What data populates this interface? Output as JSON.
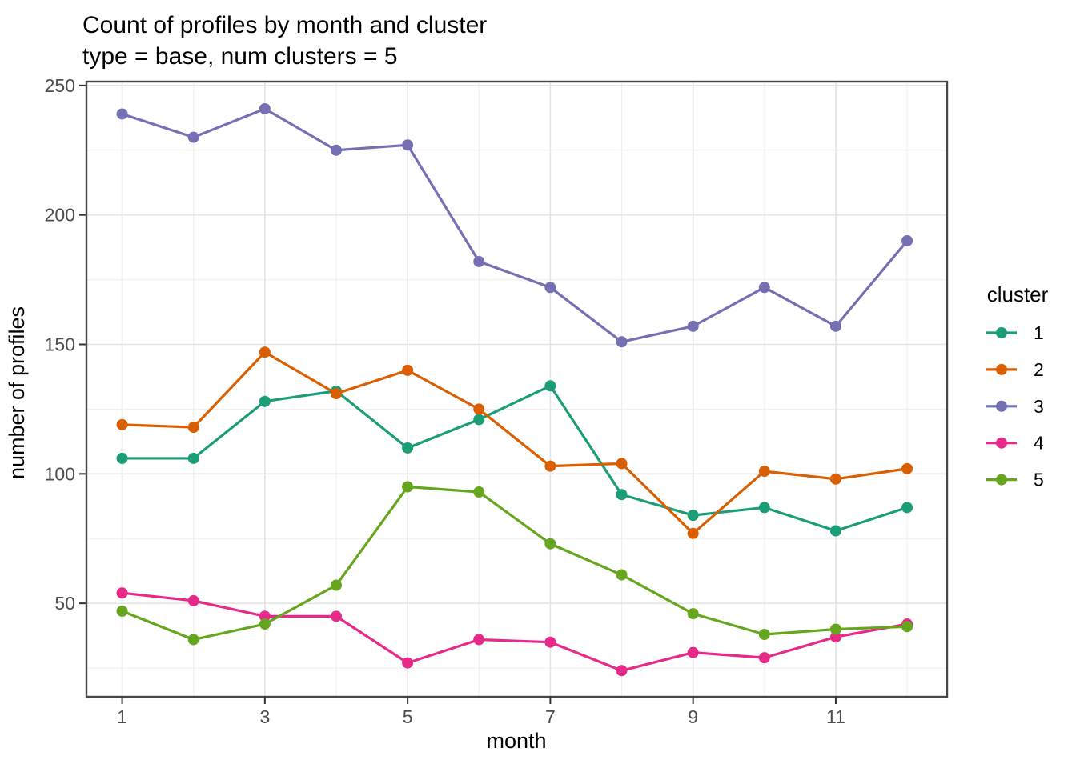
{
  "title": "Count of profiles by month and cluster",
  "subtitle": "type = base, num clusters = 5",
  "legend": {
    "title": "cluster",
    "items": [
      {
        "label": "1",
        "color": "#1B9E77"
      },
      {
        "label": "2",
        "color": "#D95F02"
      },
      {
        "label": "3",
        "color": "#7570B3"
      },
      {
        "label": "4",
        "color": "#E7298A"
      },
      {
        "label": "5",
        "color": "#66A61E"
      }
    ]
  },
  "axes": {
    "x": {
      "label": "month",
      "tick_values": [
        1,
        3,
        5,
        7,
        9,
        11
      ]
    },
    "y": {
      "label": "number of profiles",
      "tick_values": [
        50,
        100,
        150,
        200,
        250
      ]
    }
  },
  "style": {
    "background": "#FFFFFF",
    "panel_background": "#FFFFFF",
    "grid_major": "#E5E5E5",
    "grid_minor": "#F0F0F0",
    "panel_border": "#474747",
    "tick_mark": "#333333",
    "tick_label_color": "#4D4D4D",
    "text_color": "#000000"
  },
  "chart_data": {
    "type": "line",
    "title": "Count of profiles by month and cluster",
    "subtitle": "type = base, num clusters = 5",
    "xlabel": "month",
    "ylabel": "number of profiles",
    "legend_title": "cluster",
    "legend_position": "right",
    "grid": true,
    "x": [
      1,
      2,
      3,
      4,
      5,
      6,
      7,
      8,
      9,
      10,
      11,
      12
    ],
    "x_ticks": [
      1,
      3,
      5,
      7,
      9,
      11
    ],
    "x_minor_ticks": [
      2,
      4,
      6,
      8,
      10,
      12
    ],
    "y_ticks": [
      50,
      100,
      150,
      200,
      250
    ],
    "y_minor_ticks": [
      25,
      75,
      125,
      175,
      225
    ],
    "xlim": [
      0.5,
      12.56
    ],
    "ylim": [
      13.9,
      251.5
    ],
    "series": [
      {
        "name": "1",
        "color": "#1B9E77",
        "values": [
          106,
          106,
          128,
          132,
          110,
          121,
          134,
          92,
          84,
          87,
          78,
          87
        ]
      },
      {
        "name": "2",
        "color": "#D95F02",
        "values": [
          119,
          118,
          147,
          131,
          140,
          125,
          103,
          104,
          77,
          101,
          98,
          102
        ]
      },
      {
        "name": "3",
        "color": "#7570B3",
        "values": [
          239,
          230,
          241,
          225,
          227,
          182,
          172,
          151,
          157,
          172,
          157,
          190
        ]
      },
      {
        "name": "4",
        "color": "#E7298A",
        "values": [
          54,
          51,
          45,
          45,
          27,
          36,
          35,
          24,
          31,
          29,
          37,
          42
        ]
      },
      {
        "name": "5",
        "color": "#66A61E",
        "values": [
          47,
          36,
          42,
          57,
          95,
          93,
          73,
          61,
          46,
          38,
          40,
          41
        ]
      }
    ]
  }
}
